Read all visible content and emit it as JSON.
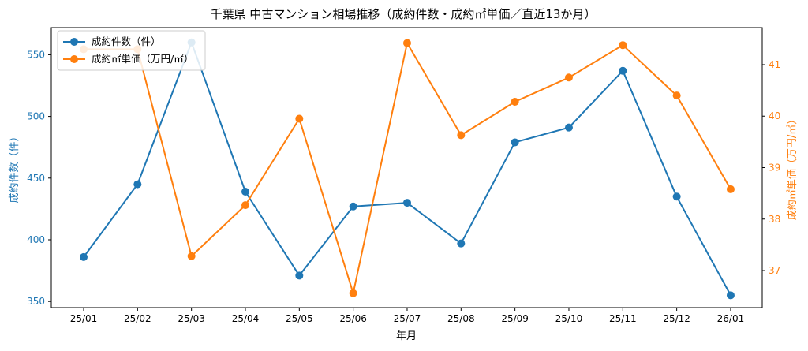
{
  "chart_data": {
    "type": "line",
    "title": "千葉県 中古マンション相場推移（成約件数・成約㎡単価／直近13か月）",
    "xlabel": "年月",
    "categories": [
      "25/01",
      "25/02",
      "25/03",
      "25/04",
      "25/05",
      "25/06",
      "25/07",
      "25/08",
      "25/09",
      "25/10",
      "25/11",
      "25/12",
      "26/01"
    ],
    "series": [
      {
        "name": "成約件数（件）",
        "axis": "left",
        "color": "#1f77b4",
        "values": [
          386,
          445,
          560,
          439,
          371,
          427,
          430,
          397,
          479,
          491,
          537,
          435,
          355
        ]
      },
      {
        "name": "成約㎡単価（万円/㎡）",
        "axis": "right",
        "color": "#ff7f0e",
        "values": [
          41.3,
          41.3,
          37.28,
          38.27,
          39.95,
          36.56,
          41.42,
          39.63,
          40.28,
          40.75,
          41.38,
          40.4,
          38.58
        ]
      }
    ],
    "y_left": {
      "label": "成約件数（件）",
      "ylim": [
        345,
        572
      ],
      "ticks": [
        350,
        400,
        450,
        500,
        550
      ],
      "color": "#1f77b4"
    },
    "y_right": {
      "label": "成約㎡単価（万円/㎡）",
      "ylim": [
        36.28,
        41.72
      ],
      "ticks": [
        37,
        38,
        39,
        40,
        41
      ],
      "color": "#ff7f0e"
    },
    "grid": false,
    "legend": "top-left"
  }
}
